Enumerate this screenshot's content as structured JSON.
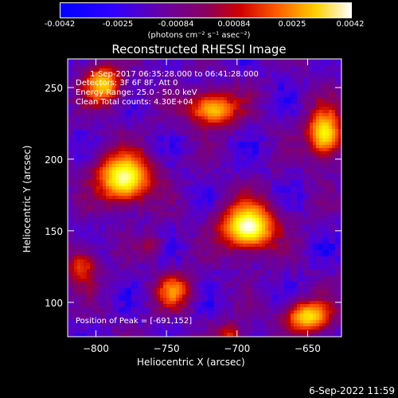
{
  "colorbar": {
    "tick_labels": [
      "-0.0042",
      "-0.0025",
      "-0.00084",
      "0.00084",
      "0.0025",
      "0.0042"
    ],
    "range": [
      -0.0042,
      0.0042
    ],
    "unit_label": "(photons cm⁻² s⁻¹ asec⁻²)"
  },
  "annotations": {
    "time_range": "1-Sep-2017 06:35:28.000 to 06:41:28.000",
    "detectors": "Detectors: 3F 6F 8F, Att 0",
    "energy": "Energy Range: 25.0 - 50.0 keV",
    "clean": "Clean    Total counts: 4.30E+04",
    "peak": "Position of Peak = [-691,152]"
  },
  "footer": {
    "timestamp": "6-Sep-2022 11:59"
  },
  "chart_data": {
    "type": "heatmap",
    "title": "Reconstructed RHESSI Image",
    "xlabel": "Heliocentric X (arcsec)",
    "ylabel": "Heliocentric Y (arcsec)",
    "xlim": [
      -820,
      -626
    ],
    "ylim": [
      76,
      270
    ],
    "x_ticks": [
      -800,
      -750,
      -700,
      -650
    ],
    "y_ticks": [
      100,
      150,
      200,
      250
    ],
    "x_tick_labels": [
      "−800",
      "−750",
      "−700",
      "−650"
    ],
    "y_tick_labels": [
      "100",
      "150",
      "200",
      "250"
    ],
    "colormap": [
      "#0000ff",
      "#4b00e0",
      "#6a00a0",
      "#800070",
      "#c00000",
      "#ff5000",
      "#ffb000",
      "#ffff00",
      "#ffffff"
    ],
    "sources": [
      {
        "x": -692,
        "y": 153,
        "sx": 14,
        "sy": 12,
        "amp": 1.0
      },
      {
        "x": -780,
        "y": 187,
        "sx": 14,
        "sy": 13,
        "amp": 0.95
      },
      {
        "x": -717,
        "y": 235,
        "sx": 13,
        "sy": 9,
        "amp": 0.75
      },
      {
        "x": -795,
        "y": 252,
        "sx": 10,
        "sy": 10,
        "amp": 0.75
      },
      {
        "x": -638,
        "y": 218,
        "sx": 9,
        "sy": 13,
        "amp": 0.85
      },
      {
        "x": -650,
        "y": 90,
        "sx": 12,
        "sy": 8,
        "amp": 0.8
      },
      {
        "x": -745,
        "y": 108,
        "sx": 9,
        "sy": 9,
        "amp": 0.6
      },
      {
        "x": -810,
        "y": 125,
        "sx": 8,
        "sy": 10,
        "amp": 0.5
      },
      {
        "x": -705,
        "y": 78,
        "sx": 7,
        "sy": 6,
        "amp": 0.45
      },
      {
        "x": -760,
        "y": 140,
        "sx": 6,
        "sy": 6,
        "amp": 0.3
      }
    ],
    "peak_position": [
      -691,
      152
    ]
  }
}
